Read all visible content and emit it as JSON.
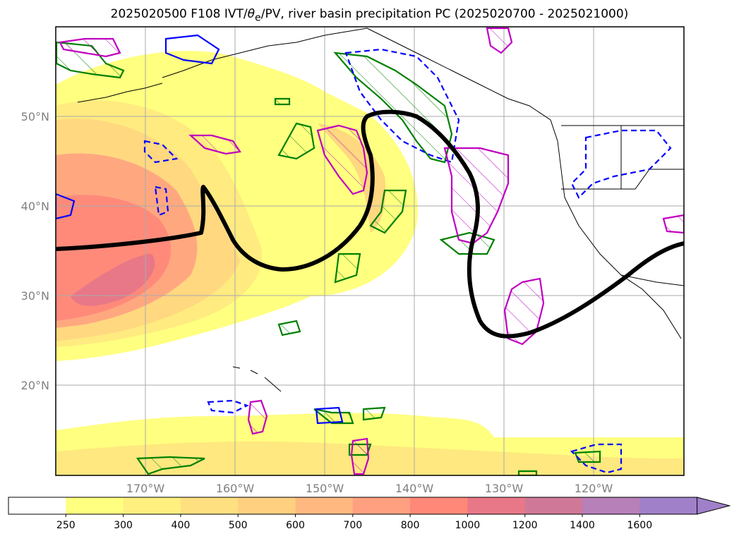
{
  "title": {
    "main": "2025020500 F108 IVT/",
    "symbol": "θ",
    "sub": "e",
    "rest": "/PV, river basin precipitation PC (2025020700 - 2025021000)"
  },
  "map": {
    "lon_labels": [
      "170°W",
      "160°W",
      "150°W",
      "140°W",
      "130°W",
      "120°W"
    ],
    "lat_labels": [
      "50°N",
      "40°N",
      "30°N",
      "20°N"
    ],
    "gridlines": true
  },
  "colorbar": {
    "ticks": [
      "250",
      "300",
      "400",
      "500",
      "600",
      "700",
      "800",
      "1000",
      "1200",
      "1400",
      "1600"
    ],
    "colors": [
      "#ffffff",
      "#ffff80",
      "#fff080",
      "#ffe080",
      "#ffd080",
      "#ffb880",
      "#ffa080",
      "#ff8878",
      "#e87888",
      "#d07898",
      "#b880b8",
      "#a080c8"
    ],
    "extend": "max"
  },
  "legend_colors": {
    "ivt_low": "#ffff80",
    "ivt_high": "#e87888",
    "theta_e_contour": "#000000",
    "positive_precip_pc": "#008000",
    "negative_precip_pc": "#0000ff",
    "pv_anomaly": "#c000c0"
  }
}
